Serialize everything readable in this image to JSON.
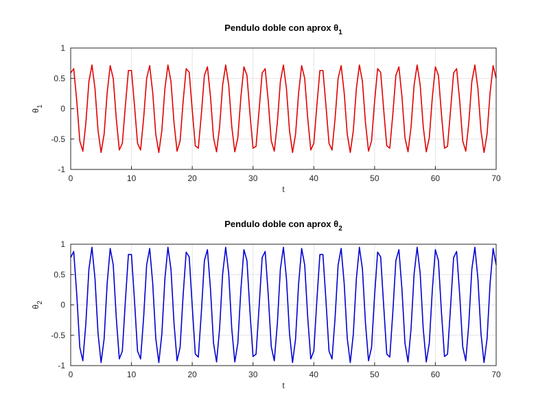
{
  "chart_data": [
    {
      "type": "line",
      "title": "Pendulo doble con aprox θ",
      "title_subscript": "1",
      "xlabel": "t",
      "ylabel": "θ",
      "ylabel_subscript": "1",
      "x": [
        0,
        0.5,
        1,
        1.5,
        2,
        2.5,
        3,
        3.5,
        4,
        4.5,
        5,
        5.5,
        6,
        6.5,
        7,
        7.5,
        8,
        8.5,
        9,
        9.5,
        10,
        10.5,
        11,
        11.5,
        12,
        12.5,
        13,
        13.5,
        14,
        14.5,
        15,
        15.5,
        16,
        16.5,
        17,
        17.5,
        18,
        18.5,
        19,
        19.5,
        20,
        20.5,
        21,
        21.5,
        22,
        22.5,
        23,
        23.5,
        24,
        24.5,
        25,
        25.5,
        26,
        26.5,
        27,
        27.5,
        28,
        28.5,
        29,
        29.5,
        30,
        30.5,
        31,
        31.5,
        32,
        32.5,
        33,
        33.5,
        34,
        34.5,
        35,
        35.5,
        36,
        36.5,
        37,
        37.5,
        38,
        38.5,
        39,
        39.5,
        40,
        40.5,
        41,
        41.5,
        42,
        42.5,
        43,
        43.5,
        44,
        44.5,
        45,
        45.5,
        46,
        46.5,
        47,
        47.5,
        48,
        48.5,
        49,
        49.5,
        50,
        50.5,
        51,
        51.5,
        52,
        52.5,
        53,
        53.5,
        54,
        54.5,
        55,
        55.5,
        56,
        56.5,
        57,
        57.5,
        58,
        58.5,
        59,
        59.5,
        60,
        60.5,
        61,
        61.5,
        62,
        62.5,
        63,
        63.5,
        64,
        64.5,
        65,
        65.5,
        66,
        66.5,
        67,
        67.5,
        68,
        68.5,
        69,
        69.5,
        70
      ],
      "series": [
        {
          "color": "#e00000",
          "values": [
            0.59,
            0.66,
            0.13,
            -0.53,
            -0.7,
            -0.23,
            0.45,
            0.72,
            0.33,
            -0.36,
            -0.72,
            -0.42,
            0.26,
            0.71,
            0.5,
            -0.16,
            -0.68,
            -0.57,
            0.05,
            0.63,
            0.63,
            0.05,
            -0.57,
            -0.68,
            -0.16,
            0.5,
            0.71,
            0.26,
            -0.42,
            -0.72,
            -0.36,
            0.33,
            0.72,
            0.45,
            -0.23,
            -0.7,
            -0.53,
            0.12,
            0.66,
            0.6,
            -0.02,
            -0.61,
            -0.65,
            -0.09,
            0.55,
            0.69,
            0.2,
            -0.48,
            -0.71,
            -0.3,
            0.39,
            0.72,
            0.39,
            -0.29,
            -0.71,
            -0.48,
            0.19,
            0.69,
            0.55,
            -0.09,
            -0.65,
            -0.62,
            -0.02,
            0.59,
            0.66,
            0.13,
            -0.53,
            -0.7,
            -0.23,
            0.45,
            0.72,
            0.33,
            -0.36,
            -0.72,
            -0.42,
            0.26,
            0.71,
            0.5,
            -0.16,
            -0.68,
            -0.57,
            0.05,
            0.63,
            0.63,
            0.05,
            -0.57,
            -0.68,
            -0.16,
            0.5,
            0.71,
            0.26,
            -0.42,
            -0.72,
            -0.36,
            0.33,
            0.72,
            0.45,
            -0.23,
            -0.7,
            -0.53,
            0.12,
            0.66,
            0.6,
            -0.02,
            -0.61,
            -0.65,
            -0.09,
            0.55,
            0.69,
            0.2,
            -0.48,
            -0.71,
            -0.3,
            0.39,
            0.72,
            0.39,
            -0.29,
            -0.71,
            -0.48,
            0.19,
            0.69,
            0.55,
            -0.09,
            -0.65,
            -0.62,
            -0.02,
            0.59,
            0.66,
            0.13,
            -0.53,
            -0.7,
            -0.23,
            0.45,
            0.72,
            0.33,
            -0.36,
            -0.72,
            -0.42,
            0.26,
            0.71,
            0.5
          ]
        }
      ],
      "xlim": [
        0,
        70
      ],
      "ylim": [
        -1,
        1
      ],
      "xticks": [
        0,
        10,
        20,
        30,
        40,
        50,
        60,
        70
      ],
      "yticks": [
        -1,
        -0.5,
        0,
        0.5,
        1
      ],
      "grid": true
    },
    {
      "type": "line",
      "title": "Pendulo doble con aprox θ",
      "title_subscript": "2",
      "xlabel": "t",
      "ylabel": "θ",
      "ylabel_subscript": "2",
      "x": [
        0,
        0.5,
        1,
        1.5,
        2,
        2.5,
        3,
        3.5,
        4,
        4.5,
        5,
        5.5,
        6,
        6.5,
        7,
        7.5,
        8,
        8.5,
        9,
        9.5,
        10,
        10.5,
        11,
        11.5,
        12,
        12.5,
        13,
        13.5,
        14,
        14.5,
        15,
        15.5,
        16,
        16.5,
        17,
        17.5,
        18,
        18.5,
        19,
        19.5,
        20,
        20.5,
        21,
        21.5,
        22,
        22.5,
        23,
        23.5,
        24,
        24.5,
        25,
        25.5,
        26,
        26.5,
        27,
        27.5,
        28,
        28.5,
        29,
        29.5,
        30,
        30.5,
        31,
        31.5,
        32,
        32.5,
        33,
        33.5,
        34,
        34.5,
        35,
        35.5,
        36,
        36.5,
        37,
        37.5,
        38,
        38.5,
        39,
        39.5,
        40,
        40.5,
        41,
        41.5,
        42,
        42.5,
        43,
        43.5,
        44,
        44.5,
        45,
        45.5,
        46,
        46.5,
        47,
        47.5,
        48,
        48.5,
        49,
        49.5,
        50,
        50.5,
        51,
        51.5,
        52,
        52.5,
        53,
        53.5,
        54,
        54.5,
        55,
        55.5,
        56,
        56.5,
        57,
        57.5,
        58,
        58.5,
        59,
        59.5,
        60,
        60.5,
        61,
        61.5,
        62,
        62.5,
        63,
        63.5,
        64,
        64.5,
        65,
        65.5,
        66,
        66.5,
        67,
        67.5,
        68,
        68.5,
        69,
        69.5,
        70
      ],
      "series": [
        {
          "color": "#0000d0",
          "values": [
            0.78,
            0.88,
            0.17,
            -0.7,
            -0.92,
            -0.3,
            0.59,
            0.95,
            0.43,
            -0.47,
            -0.95,
            -0.56,
            0.35,
            0.93,
            0.66,
            -0.21,
            -0.89,
            -0.76,
            0.07,
            0.83,
            0.83,
            0.07,
            -0.76,
            -0.89,
            -0.21,
            0.66,
            0.93,
            0.35,
            -0.55,
            -0.95,
            -0.48,
            0.43,
            0.95,
            0.59,
            -0.3,
            -0.92,
            -0.7,
            0.16,
            0.87,
            0.79,
            -0.02,
            -0.81,
            -0.86,
            -0.12,
            0.73,
            0.91,
            0.26,
            -0.63,
            -0.94,
            -0.39,
            0.51,
            0.95,
            0.52,
            -0.39,
            -0.94,
            -0.63,
            0.25,
            0.91,
            0.73,
            -0.12,
            -0.85,
            -0.81,
            -0.03,
            0.78,
            0.88,
            0.17,
            -0.69,
            -0.92,
            -0.31,
            0.59,
            0.95,
            0.43,
            -0.47,
            -0.95,
            -0.56,
            0.35,
            0.93,
            0.66,
            -0.21,
            -0.89,
            -0.76,
            0.07,
            0.83,
            0.83,
            0.07,
            -0.76,
            -0.89,
            -0.21,
            0.66,
            0.93,
            0.35,
            -0.55,
            -0.95,
            -0.48,
            0.43,
            0.95,
            0.59,
            -0.3,
            -0.92,
            -0.7,
            0.16,
            0.87,
            0.79,
            -0.02,
            -0.81,
            -0.86,
            -0.12,
            0.73,
            0.91,
            0.26,
            -0.63,
            -0.94,
            -0.39,
            0.51,
            0.95,
            0.52,
            -0.39,
            -0.94,
            -0.63,
            0.25,
            0.91,
            0.73,
            -0.12,
            -0.85,
            -0.81,
            -0.03,
            0.78,
            0.88,
            0.17,
            -0.69,
            -0.92,
            -0.31,
            0.59,
            0.95,
            0.43,
            -0.47,
            -0.95,
            -0.56,
            0.35,
            0.93,
            0.66
          ]
        }
      ],
      "xlim": [
        0,
        70
      ],
      "ylim": [
        -1,
        1
      ],
      "xticks": [
        0,
        10,
        20,
        30,
        40,
        50,
        60,
        70
      ],
      "yticks": [
        -1,
        -0.5,
        0,
        0.5,
        1
      ],
      "grid": true
    }
  ]
}
